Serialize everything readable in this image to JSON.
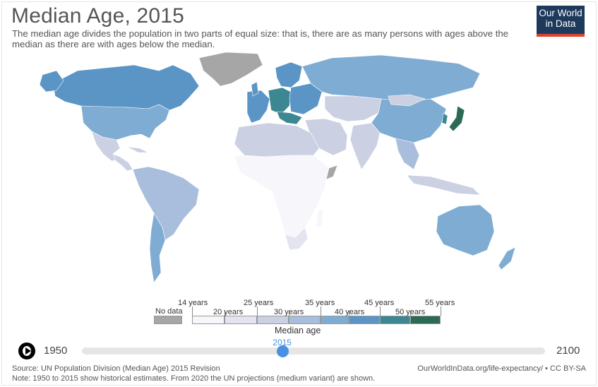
{
  "header": {
    "title": "Median Age, 2015",
    "subtitle": "The median age divides the population in two parts of equal size: that is, there are as many persons with ages above the median as there are with ages below the median.",
    "logo_line1": "Our World",
    "logo_line2": "in Data"
  },
  "legend": {
    "title": "Median age",
    "no_data_label": "No data",
    "top_labels": [
      "14 years",
      "25 years",
      "35 years",
      "45 years",
      "55 years"
    ],
    "bottom_labels": [
      "20 years",
      "30 years",
      "40 years",
      "50 years"
    ],
    "colors": [
      "#f7f6fb",
      "#e4e4f0",
      "#cbd1e3",
      "#a9bedc",
      "#7facd2",
      "#5a95c6",
      "#3c8792",
      "#2b6a55"
    ],
    "no_data_color": "#a6a6a6"
  },
  "timeline": {
    "start_label": "1950",
    "end_label": "2100",
    "current_label": "2015",
    "start_year": 1950,
    "end_year": 2100,
    "current_year": 2015
  },
  "footer": {
    "source": "Source: UN Population Division (Median Age) 2015 Revision",
    "note": "Note: 1950 to 2015 show historical estimates. From 2020 the UN projections (medium variant) are shown.",
    "url": "OurWorldInData.org/life-expectancy/ • CC BY-SA"
  },
  "regions": [
    {
      "name": "Canada",
      "color": "#5a95c6"
    },
    {
      "name": "United States",
      "color": "#7facd2"
    },
    {
      "name": "Greenland",
      "color": "#a6a6a6"
    },
    {
      "name": "Mexico",
      "color": "#cbd1e3"
    },
    {
      "name": "Central America",
      "color": "#cbd1e3"
    },
    {
      "name": "South America",
      "color": "#a9bedc"
    },
    {
      "name": "Argentina",
      "color": "#7facd2"
    },
    {
      "name": "Western Europe",
      "color": "#5a95c6"
    },
    {
      "name": "Germany",
      "color": "#3c8792"
    },
    {
      "name": "Russia",
      "color": "#7facd2"
    },
    {
      "name": "Central Asia",
      "color": "#cbd1e3"
    },
    {
      "name": "China",
      "color": "#7facd2"
    },
    {
      "name": "Japan",
      "color": "#2b6a55"
    },
    {
      "name": "Middle East",
      "color": "#cbd1e3"
    },
    {
      "name": "India",
      "color": "#cbd1e3"
    },
    {
      "name": "Southeast Asia",
      "color": "#a9bedc"
    },
    {
      "name": "North Africa",
      "color": "#cbd1e3"
    },
    {
      "name": "Sub-Saharan Africa",
      "color": "#f7f6fb"
    },
    {
      "name": "South Africa",
      "color": "#e4e4f0"
    },
    {
      "name": "Australia",
      "color": "#7facd2"
    },
    {
      "name": "New Zealand",
      "color": "#7facd2"
    },
    {
      "name": "Somalia",
      "color": "#a6a6a6"
    }
  ]
}
